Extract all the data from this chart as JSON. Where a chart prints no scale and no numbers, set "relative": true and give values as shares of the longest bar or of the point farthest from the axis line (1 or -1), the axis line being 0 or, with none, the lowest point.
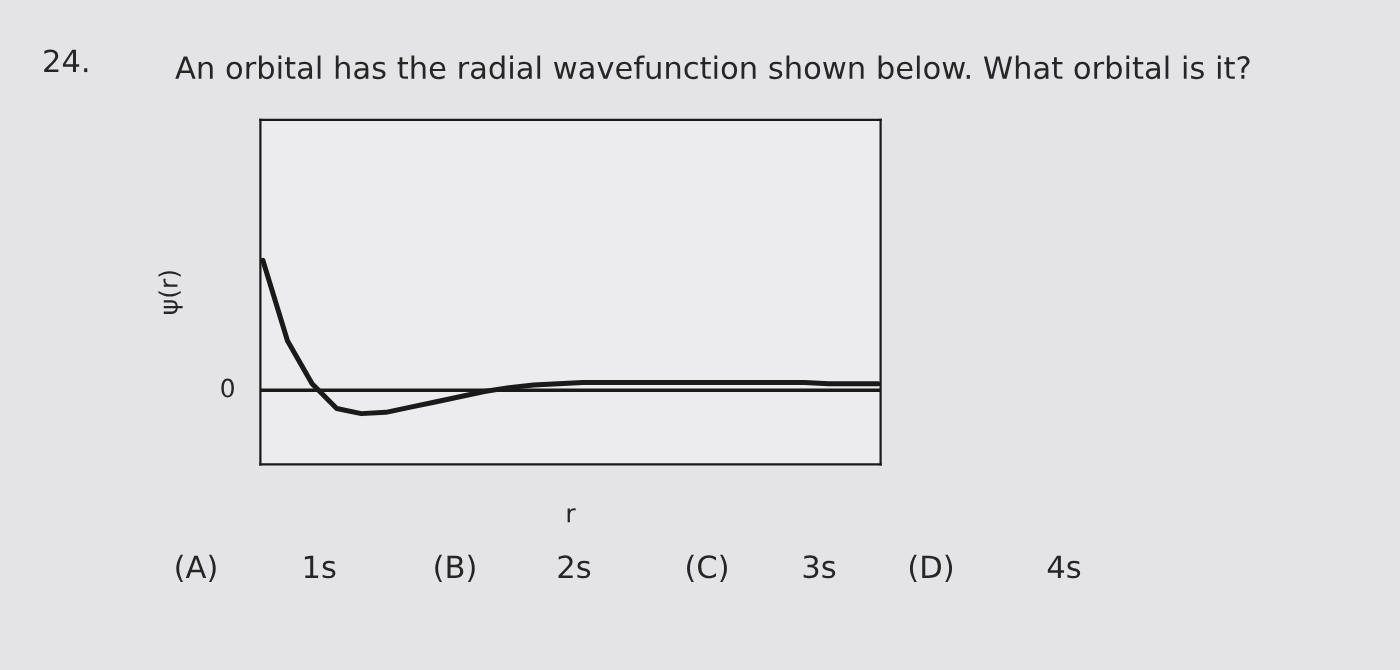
{
  "chart_data": {
    "type": "line",
    "relative": true,
    "title": "An orbital has the radial wavefunction shown below. What orbital is it?",
    "xlabel": "r",
    "ylabel": "ψ(r)",
    "categories": [
      null,
      null,
      null,
      null,
      null,
      null,
      null,
      null,
      null,
      null,
      null,
      null,
      null,
      null,
      null,
      null,
      null,
      null,
      null,
      null,
      null,
      null,
      null,
      null,
      null,
      null
    ],
    "series": [
      {
        "color": "#1a1a1a",
        "values": [
          1.0,
          0.38,
          0.05,
          -0.14,
          -0.18,
          -0.17,
          -0.13,
          -0.09,
          -0.05,
          -0.01,
          0.02,
          0.04,
          0.05,
          0.06,
          0.06,
          0.06,
          0.06,
          0.06,
          0.06,
          0.06,
          0.06,
          0.06,
          0.06,
          0.05,
          0.05,
          0.05
        ]
      }
    ],
    "ref_lines": [
      {
        "axis": "y",
        "value": 0,
        "label": "0",
        "color": "#1a1a1a"
      }
    ],
    "annotations": [
      "24.",
      "(A)",
      "1s",
      "(B)",
      "2s",
      "(C)",
      "3s",
      "(D)",
      "4s"
    ],
    "marker": "none",
    "line_style": "solid"
  }
}
